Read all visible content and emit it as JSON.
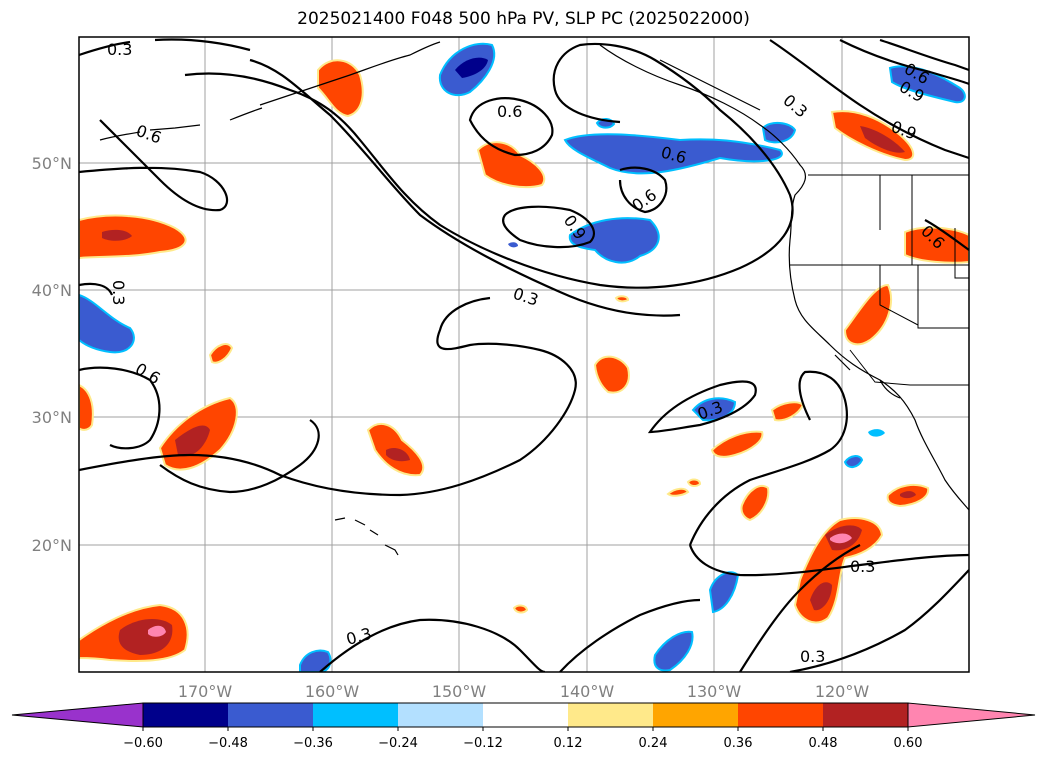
{
  "title": "2025021400 F048 500 hPa PV, SLP PC (2025022000)",
  "map": {
    "lat_labels": [
      "50°N",
      "40°N",
      "30°N",
      "20°N"
    ],
    "lon_labels": [
      "170°W",
      "160°W",
      "150°W",
      "140°W",
      "130°W",
      "120°W"
    ],
    "contour_labels": [
      "0.3",
      "0.6",
      "0.9"
    ],
    "colors": {
      "pos_low": "#ffe98a",
      "pos_mid": "#ffa500",
      "pos_high": "#ff4500",
      "pos_higher": "#b22222",
      "pos_max": "#ff85b0",
      "neg_low": "#b3e0ff",
      "neg_mid": "#00bfff",
      "neg_high": "#3a5bd0",
      "neg_higher": "#00008b",
      "neg_max": "#9932cc"
    }
  },
  "colorbar": {
    "ticks": [
      "−0.60",
      "−0.48",
      "−0.36",
      "−0.24",
      "−0.12",
      "0.12",
      "0.24",
      "0.36",
      "0.48",
      "0.60"
    ],
    "colors": [
      "#9932cc",
      "#00008b",
      "#3a5bd0",
      "#00bfff",
      "#b3e0ff",
      "#ffffff",
      "#ffe98a",
      "#ffa500",
      "#ff4500",
      "#b22222",
      "#ff85b0"
    ]
  }
}
